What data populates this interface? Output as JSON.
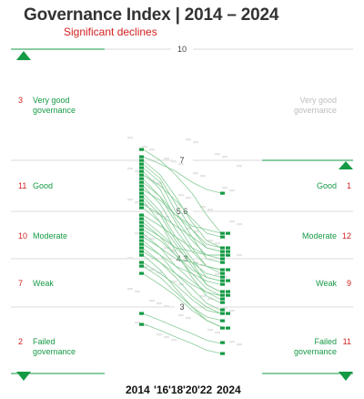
{
  "title": "Governance Index | 2014 – 2024",
  "subtitle": "Significant declines",
  "colors": {
    "accent": "#159a45",
    "highlight": "#d32020",
    "muted": "#bdbdbd",
    "line": "#7cc68d"
  },
  "left_categories": [
    {
      "label": "Very good\ngovernance",
      "count": "3"
    },
    {
      "label": "Good",
      "count": "11"
    },
    {
      "label": "Moderate",
      "count": "10"
    },
    {
      "label": "Weak",
      "count": "7"
    },
    {
      "label": "Failed\ngovernance",
      "count": "2"
    }
  ],
  "right_categories": [
    {
      "label": "Very good\ngovernance",
      "count": ""
    },
    {
      "label": "Good",
      "count": "1"
    },
    {
      "label": "Moderate",
      "count": "12"
    },
    {
      "label": "Weak",
      "count": "9"
    },
    {
      "label": "Failed\ngovernance",
      "count": "11"
    }
  ],
  "year_labels": [
    "2014",
    "'16",
    "'18",
    "'20",
    "'22",
    "2024"
  ],
  "chart_data": {
    "type": "line",
    "title": "Governance Index | 2014 – 2024",
    "subtitle": "Significant declines",
    "y_range": [
      1,
      10
    ],
    "thresholds": [
      {
        "value": 10,
        "label": "10"
      },
      {
        "value": 7,
        "label": "7"
      },
      {
        "value": 5.6,
        "label": "5.6"
      },
      {
        "value": 4.3,
        "label": "4.3"
      },
      {
        "value": 3,
        "label": "3"
      }
    ],
    "x": [
      "2014",
      "'16",
      "'18",
      "'20",
      "'22",
      "2024"
    ],
    "count_2014": {
      "Very good governance": 3,
      "Good": 11,
      "Moderate": 10,
      "Weak": 7,
      "Failed governance": 2
    },
    "count_2024": {
      "Good": 1,
      "Moderate": 12,
      "Weak": 9,
      "Failed governance": 11
    },
    "series": [
      {
        "values": [
          7.3,
          7.0,
          6.6,
          6.1,
          5.5,
          5.0
        ]
      },
      {
        "values": [
          7.1,
          6.9,
          6.7,
          6.4,
          6.2,
          6.1
        ]
      },
      {
        "values": [
          7.0,
          6.6,
          6.0,
          5.3,
          4.8,
          4.6
        ]
      },
      {
        "values": [
          6.9,
          6.5,
          5.8,
          5.1,
          4.6,
          4.5
        ]
      },
      {
        "values": [
          6.8,
          6.4,
          5.6,
          4.9,
          4.3,
          4.2
        ]
      },
      {
        "values": [
          6.7,
          6.2,
          5.4,
          4.8,
          4.4,
          4.4
        ]
      },
      {
        "values": [
          6.6,
          6.3,
          5.9,
          5.4,
          5.0,
          4.9
        ]
      },
      {
        "values": [
          6.5,
          6.0,
          5.3,
          4.6,
          4.1,
          4.0
        ]
      },
      {
        "values": [
          6.4,
          6.0,
          5.5,
          5.2,
          5.1,
          5.0
        ]
      },
      {
        "values": [
          6.3,
          5.8,
          5.1,
          4.5,
          4.1,
          3.9
        ]
      },
      {
        "values": [
          6.2,
          5.9,
          5.5,
          5.1,
          4.7,
          4.6
        ]
      },
      {
        "values": [
          6.1,
          5.6,
          4.9,
          4.3,
          3.8,
          3.7
        ]
      },
      {
        "values": [
          6.0,
          5.5,
          4.8,
          4.2,
          3.6,
          3.4
        ]
      },
      {
        "values": [
          5.9,
          5.3,
          4.5,
          3.8,
          3.3,
          3.1
        ]
      },
      {
        "values": [
          5.8,
          5.5,
          5.2,
          4.9,
          4.6,
          4.5
        ]
      },
      {
        "values": [
          5.7,
          5.3,
          4.7,
          4.1,
          3.6,
          3.4
        ]
      },
      {
        "values": [
          5.5,
          5.2,
          4.9,
          4.6,
          4.4,
          4.3
        ]
      },
      {
        "values": [
          5.4,
          5.0,
          4.6,
          4.2,
          3.9,
          3.8
        ]
      },
      {
        "values": [
          5.3,
          4.9,
          4.4,
          3.9,
          3.5,
          3.3
        ]
      },
      {
        "values": [
          5.2,
          4.9,
          4.6,
          4.5,
          4.4,
          4.4
        ]
      },
      {
        "values": [
          5.1,
          4.8,
          4.4,
          4.0,
          3.8,
          3.7
        ]
      },
      {
        "values": [
          5.0,
          4.6,
          4.1,
          3.7,
          3.4,
          3.2
        ]
      },
      {
        "values": [
          4.9,
          4.6,
          4.3,
          4.2,
          4.1,
          4.0
        ]
      },
      {
        "values": [
          4.8,
          4.4,
          3.9,
          3.5,
          3.1,
          2.9
        ]
      },
      {
        "values": [
          4.7,
          4.4,
          4.1,
          3.9,
          3.7,
          3.6
        ]
      },
      {
        "values": [
          4.6,
          4.2,
          3.8,
          3.3,
          3.0,
          2.8
        ]
      },
      {
        "values": [
          4.5,
          4.2,
          3.9,
          3.6,
          3.4,
          3.3
        ]
      },
      {
        "values": [
          4.4,
          4.0,
          3.5,
          3.0,
          2.6,
          2.4
        ]
      },
      {
        "values": [
          4.2,
          3.9,
          3.6,
          3.2,
          2.9,
          2.8
        ]
      },
      {
        "values": [
          4.1,
          3.8,
          3.4,
          3.0,
          2.7,
          2.6
        ]
      },
      {
        "values": [
          3.9,
          3.6,
          3.3,
          2.9,
          2.6,
          2.4
        ]
      },
      {
        "values": [
          2.8,
          2.6,
          2.4,
          2.2,
          2.0,
          1.9
        ]
      },
      {
        "values": [
          2.5,
          2.3,
          2.1,
          1.9,
          1.7,
          1.6
        ]
      }
    ]
  }
}
